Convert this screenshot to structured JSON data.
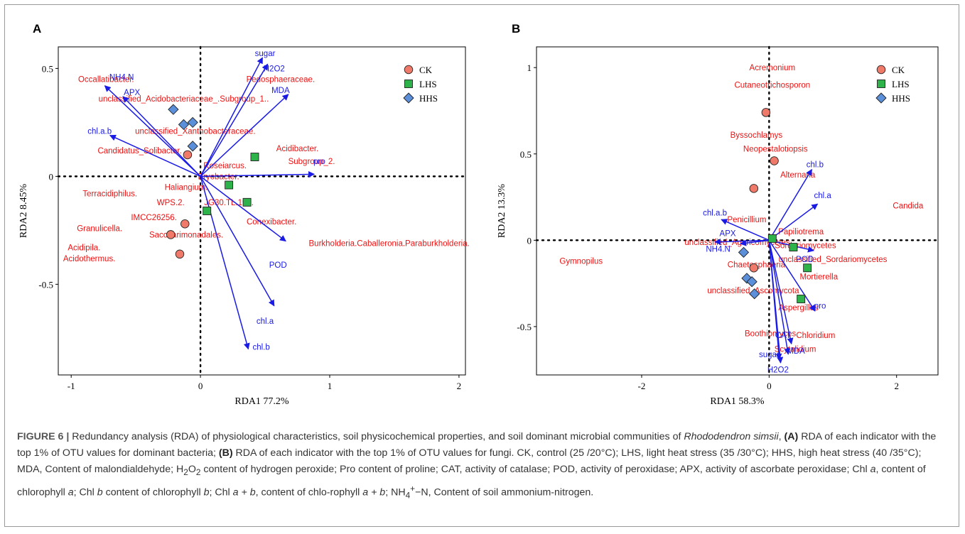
{
  "colors": {
    "ck": "#f07a6a",
    "lhs": "#2db34a",
    "hhs": "#5b8fd9",
    "arrow": "#1a1ae6",
    "taxa": "#ee1111"
  },
  "panels": {
    "A": {
      "letter": "A"
    },
    "B": {
      "letter": "B"
    }
  },
  "caption": {
    "figure_label": "FIGURE 6 |",
    "part1": " Redundancy analysis (RDA) of physiological characteristics, soil physicochemical properties, and soil dominant microbial communities of ",
    "species": "Rhododendron simsii",
    "part2": ", ",
    "a_label": "(A)",
    "part3": " RDA of each indicator with the top 1% of OTU values for dominant bacteria; ",
    "b_label": "(B)",
    "part4": " RDA of each indicator with the top 1% of OTU values for fungi. CK, control (25 /20°C); LHS, light heat stress (35 /30°C); HHS, high heat stress (40 /35°C); MDA, Content of malondialdehyde; H",
    "sub2": "2",
    "o": "O",
    "sub2b": "2",
    "part5": " content of hydrogen peroxide; Pro content of proline; CAT, activity of catalase; POD, activity of peroxidase; APX, activity of ascorbate peroxidase; Chl ",
    "a1": "a",
    "part6": ", content of chlorophyll ",
    "a2": "a",
    "part7": "; Chl ",
    "b1": "b",
    "part8": " content of chlorophyll ",
    "b2": "b",
    "part9": "; Chl ",
    "ab1": "a + b",
    "part10": ", content of chlo-rophyll ",
    "ab2": "a + b",
    "part11": "; NH",
    "sub4": "4",
    "sup": "+",
    "part12": "−N, Content of soil ammonium-nitrogen."
  },
  "chart_data": [
    {
      "type": "scatter",
      "panel": "A",
      "xlabel": "RDA1 77.2%",
      "ylabel": "RDA2  8.45%",
      "xlim": [
        -1.1,
        2.05
      ],
      "ylim": [
        -0.92,
        0.6
      ],
      "xticks": [
        -1,
        0,
        1,
        2
      ],
      "xtick_labels": [
        "-1",
        "0",
        "1",
        "2"
      ],
      "yticks": [
        -0.5,
        0,
        0.5
      ],
      "ytick_labels": [
        "-0.5",
        "0",
        "0.5"
      ],
      "legend": {
        "position": "top-right",
        "entries": [
          "CK",
          "LHS",
          "HHS"
        ]
      },
      "samples": [
        {
          "group": "CK",
          "x": -0.1,
          "y": 0.1
        },
        {
          "group": "CK",
          "x": -0.12,
          "y": -0.22
        },
        {
          "group": "CK",
          "x": -0.23,
          "y": -0.27
        },
        {
          "group": "CK",
          "x": -0.16,
          "y": -0.36
        },
        {
          "group": "LHS",
          "x": 0.42,
          "y": 0.09
        },
        {
          "group": "LHS",
          "x": 0.22,
          "y": -0.04
        },
        {
          "group": "LHS",
          "x": 0.36,
          "y": -0.12
        },
        {
          "group": "LHS",
          "x": 0.05,
          "y": -0.16
        },
        {
          "group": "HHS",
          "x": -0.21,
          "y": 0.31
        },
        {
          "group": "HHS",
          "x": -0.13,
          "y": 0.24
        },
        {
          "group": "HHS",
          "x": -0.06,
          "y": 0.25
        },
        {
          "group": "HHS",
          "x": -0.06,
          "y": 0.14
        }
      ],
      "vectors": [
        {
          "label": "sugar",
          "x": 0.48,
          "y": 0.55,
          "lx": 0.5,
          "ly": 0.57
        },
        {
          "label": "H2O2",
          "x": 0.52,
          "y": 0.52,
          "lx": 0.57,
          "ly": 0.5
        },
        {
          "label": "MDA",
          "x": 0.68,
          "y": 0.38,
          "lx": 0.62,
          "ly": 0.4
        },
        {
          "label": "NH4.N",
          "x": -0.74,
          "y": 0.42,
          "lx": -0.61,
          "ly": 0.46
        },
        {
          "label": "APX",
          "x": -0.6,
          "y": 0.37,
          "lx": -0.53,
          "ly": 0.39
        },
        {
          "label": "chl.a.b",
          "x": -0.7,
          "y": 0.19,
          "lx": -0.78,
          "ly": 0.21
        },
        {
          "label": "pro",
          "x": 0.88,
          "y": 0.01,
          "lx": 0.92,
          "ly": 0.07
        },
        {
          "label": "POD",
          "x": 0.66,
          "y": -0.3,
          "lx": 0.6,
          "ly": -0.41
        },
        {
          "label": "chl.a",
          "x": 0.57,
          "y": -0.6,
          "lx": 0.5,
          "ly": -0.67
        },
        {
          "label": "chl.b",
          "x": 0.37,
          "y": -0.8,
          "lx": 0.47,
          "ly": -0.79
        }
      ],
      "taxa": [
        {
          "label": "Occallatibacter.",
          "x": -0.73,
          "y": 0.45
        },
        {
          "label": "Pedosphaeraceae.",
          "x": 0.62,
          "y": 0.45
        },
        {
          "label": "unclassified_Acidobacteriaceae_.Subgroup_1..",
          "x": -0.13,
          "y": 0.36
        },
        {
          "label": "unclassified_Xanthobacteraceae.",
          "x": -0.04,
          "y": 0.21
        },
        {
          "label": "Candidatus_Solibacter.",
          "x": -0.47,
          "y": 0.12
        },
        {
          "label": "Acidibacter.",
          "x": 0.75,
          "y": 0.13
        },
        {
          "label": "Subgroup_2.",
          "x": 0.86,
          "y": 0.07
        },
        {
          "label": "Roseiarcus.",
          "x": 0.19,
          "y": 0.05
        },
        {
          "label": "Bryobacter.",
          "x": 0.14,
          "y": 0.0
        },
        {
          "label": "Terracidiphilus.",
          "x": -0.7,
          "y": -0.08
        },
        {
          "label": "Haliangium.",
          "x": -0.11,
          "y": -0.05
        },
        {
          "label": "WPS.2.",
          "x": -0.23,
          "y": -0.12
        },
        {
          "label": "JG30.TL.191.",
          "x": 0.22,
          "y": -0.12
        },
        {
          "label": "IMCC26256.",
          "x": -0.36,
          "y": -0.19
        },
        {
          "label": "Conexibacter.",
          "x": 0.55,
          "y": -0.21
        },
        {
          "label": "Granulicella.",
          "x": -0.78,
          "y": -0.24
        },
        {
          "label": "Saccharimonadales.",
          "x": -0.11,
          "y": -0.27
        },
        {
          "label": "Burkholderia.Caballeronia.Paraburkholderia.",
          "x": 1.46,
          "y": -0.31
        },
        {
          "label": "Acidipila.",
          "x": -0.9,
          "y": -0.33
        },
        {
          "label": "Acidothermus.",
          "x": -0.86,
          "y": -0.38
        }
      ]
    },
    {
      "type": "scatter",
      "panel": "B",
      "xlabel": "RDA1 58.3%",
      "ylabel": "RDA2  13.3%",
      "xlim": [
        -3.65,
        2.65
      ],
      "ylim": [
        -0.78,
        1.12
      ],
      "xticks": [
        -2,
        0,
        2
      ],
      "xtick_labels": [
        "-2",
        "0",
        "2"
      ],
      "yticks": [
        -0.5,
        0,
        0.5,
        1
      ],
      "ytick_labels": [
        "-0.5",
        "0",
        "0.5",
        "1"
      ],
      "legend": {
        "position": "top-right",
        "entries": [
          "CK",
          "LHS",
          "HHS"
        ]
      },
      "samples": [
        {
          "group": "CK",
          "x": -0.05,
          "y": 0.74
        },
        {
          "group": "CK",
          "x": 0.08,
          "y": 0.46
        },
        {
          "group": "CK",
          "x": -0.24,
          "y": 0.3
        },
        {
          "group": "CK",
          "x": -0.24,
          "y": -0.16
        },
        {
          "group": "LHS",
          "x": 0.05,
          "y": 0.01
        },
        {
          "group": "LHS",
          "x": 0.38,
          "y": -0.04
        },
        {
          "group": "LHS",
          "x": 0.6,
          "y": -0.16
        },
        {
          "group": "LHS",
          "x": 0.5,
          "y": -0.34
        },
        {
          "group": "HHS",
          "x": -0.4,
          "y": -0.07
        },
        {
          "group": "HHS",
          "x": -0.35,
          "y": -0.22
        },
        {
          "group": "HHS",
          "x": -0.27,
          "y": -0.24
        },
        {
          "group": "HHS",
          "x": -0.23,
          "y": -0.31
        }
      ],
      "vectors": [
        {
          "label": "chl.b",
          "x": 0.67,
          "y": 0.41,
          "lx": 0.72,
          "ly": 0.44
        },
        {
          "label": "chl.a",
          "x": 0.76,
          "y": 0.21,
          "lx": 0.84,
          "ly": 0.26
        },
        {
          "label": "chl.a.b",
          "x": -0.75,
          "y": 0.12,
          "lx": -0.85,
          "ly": 0.16
        },
        {
          "label": "APX",
          "x": -0.85,
          "y": -0.01,
          "lx": -0.65,
          "ly": 0.04
        },
        {
          "label": "NH4.N",
          "x": -0.45,
          "y": -0.02,
          "lx": -0.8,
          "ly": -0.05
        },
        {
          "label": "POD",
          "x": 0.7,
          "y": -0.06,
          "lx": 0.56,
          "ly": -0.11
        },
        {
          "label": "pro",
          "x": 0.72,
          "y": -0.41,
          "lx": 0.8,
          "ly": -0.38
        },
        {
          "label": "CAT",
          "x": 0.35,
          "y": -0.6,
          "lx": 0.22,
          "ly": -0.55
        },
        {
          "label": "MDA",
          "x": 0.3,
          "y": -0.66,
          "lx": 0.42,
          "ly": -0.64
        },
        {
          "label": "sugar",
          "x": 0.16,
          "y": -0.69,
          "lx": 0.0,
          "ly": -0.66
        },
        {
          "label": "H2O2",
          "x": 0.18,
          "y": -0.71,
          "lx": 0.14,
          "ly": -0.75
        }
      ],
      "taxa": [
        {
          "label": "Acremonium",
          "x": 0.05,
          "y": 1.0
        },
        {
          "label": "Cutaneotrichosporon",
          "x": 0.05,
          "y": 0.9
        },
        {
          "label": "Byssochlamys",
          "x": -0.2,
          "y": 0.61
        },
        {
          "label": "Neopestalotiopsis",
          "x": 0.1,
          "y": 0.53
        },
        {
          "label": "Alternaria",
          "x": 0.45,
          "y": 0.38
        },
        {
          "label": "Candida",
          "x": 2.18,
          "y": 0.2
        },
        {
          "label": "Penicillium",
          "x": -0.35,
          "y": 0.12
        },
        {
          "label": "Papiliotrema",
          "x": 0.5,
          "y": 0.05
        },
        {
          "label": "unclassified_Agaricomycetes",
          "x": -0.5,
          "y": -0.01
        },
        {
          "label": "Sordariomycetes",
          "x": 0.57,
          "y": -0.03
        },
        {
          "label": "unclassified_Sordariomycetes",
          "x": 1.0,
          "y": -0.11
        },
        {
          "label": "Gymnopilus",
          "x": -2.95,
          "y": -0.12
        },
        {
          "label": "Chaetosphaeria",
          "x": -0.2,
          "y": -0.14
        },
        {
          "label": "Mortierella",
          "x": 0.78,
          "y": -0.21
        },
        {
          "label": "unclassified_Ascomycota",
          "x": -0.25,
          "y": -0.29
        },
        {
          "label": "Aspergillus",
          "x": 0.46,
          "y": -0.39
        },
        {
          "label": "Boothiomyces",
          "x": 0.02,
          "y": -0.54
        },
        {
          "label": "Chloridium",
          "x": 0.73,
          "y": -0.55
        },
        {
          "label": "Scytalidium",
          "x": 0.41,
          "y": -0.63
        }
      ]
    }
  ]
}
